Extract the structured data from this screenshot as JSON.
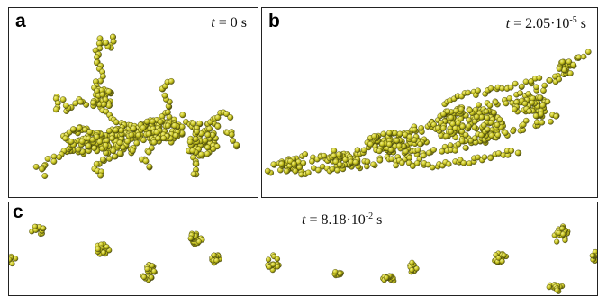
{
  "panels": [
    {
      "label": "a",
      "time_var": "t",
      "time_eq": " = 0 s",
      "mantissa": "",
      "exp": "",
      "unit": ""
    },
    {
      "label": "b",
      "time_var": "t",
      "time_eq": " = 2.05·10",
      "mantissa": "",
      "exp": "-5",
      "unit": " s"
    },
    {
      "label": "c",
      "time_var": "t",
      "time_eq": " = 8.18·10",
      "mantissa": "",
      "exp": "-2",
      "unit": " s"
    }
  ],
  "colors": {
    "particle": "#c8c41e",
    "particle_dark": "#5a5a10",
    "highlight": "#f2f08a",
    "border": "#222222"
  }
}
